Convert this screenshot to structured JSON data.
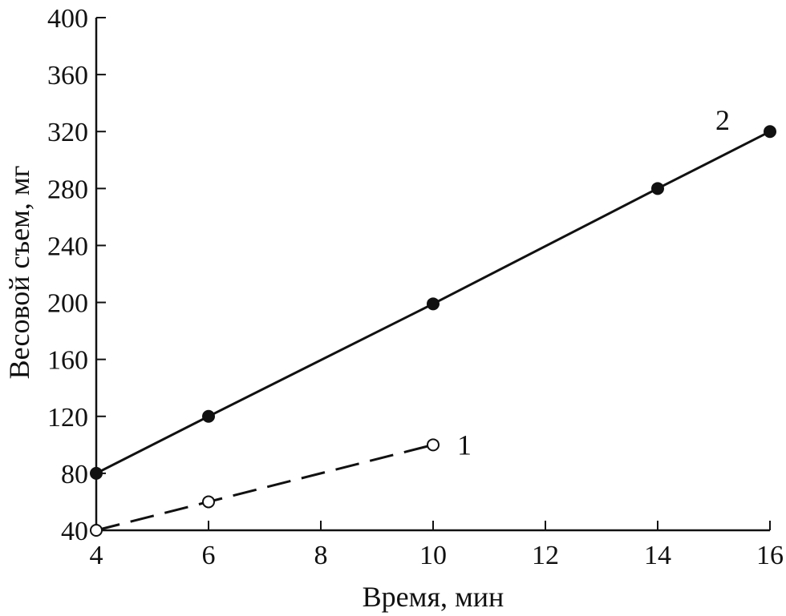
{
  "chart_data": {
    "type": "line",
    "xlabel": "Время, мин",
    "ylabel": "Весовой съем, мг",
    "xlim": [
      4,
      16
    ],
    "ylim": [
      40,
      400
    ],
    "x_ticks": [
      4,
      6,
      8,
      10,
      12,
      14,
      16
    ],
    "y_ticks": [
      40,
      80,
      120,
      160,
      200,
      240,
      280,
      320,
      360,
      400
    ],
    "x_tick_labels": [
      "4",
      "6",
      "8",
      "10",
      "12",
      "14",
      "16"
    ],
    "y_tick_labels": [
      "40",
      "80",
      "120",
      "160",
      "200",
      "240",
      "280",
      "320",
      "360",
      "400"
    ],
    "grid": false,
    "series": [
      {
        "label": "1",
        "style": "dashed",
        "marker": "open-circle",
        "color": "#111111",
        "x": [
          4,
          6,
          10
        ],
        "y": [
          40,
          60,
          100
        ]
      },
      {
        "label": "2",
        "style": "solid",
        "marker": "filled-circle",
        "color": "#111111",
        "x": [
          4,
          6,
          10,
          14,
          16
        ],
        "y": [
          80,
          120,
          199,
          280,
          320
        ]
      }
    ]
  }
}
